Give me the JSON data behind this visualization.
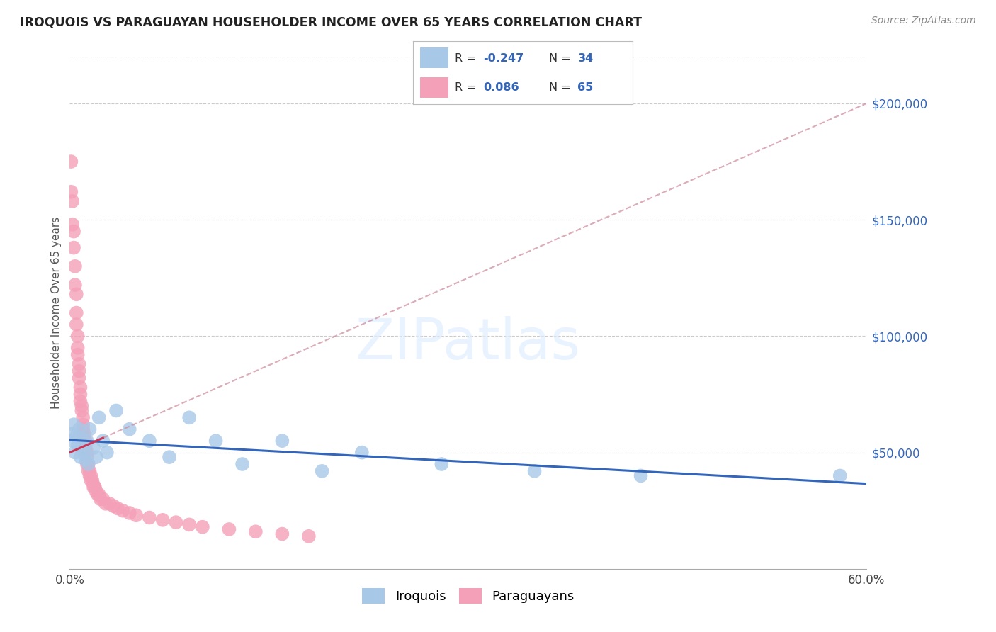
{
  "title": "IROQUOIS VS PARAGUAYAN HOUSEHOLDER INCOME OVER 65 YEARS CORRELATION CHART",
  "source": "Source: ZipAtlas.com",
  "ylabel": "Householder Income Over 65 years",
  "xlim": [
    0.0,
    0.6
  ],
  "ylim": [
    0,
    220000
  ],
  "yticks": [
    50000,
    100000,
    150000,
    200000
  ],
  "ytick_labels": [
    "$50,000",
    "$100,000",
    "$150,000",
    "$200,000"
  ],
  "iroquois_color": "#a8c8e8",
  "paraguayan_color": "#f4a0b8",
  "iroquois_line_color": "#3366bb",
  "paraguayan_line_color": "#cc3355",
  "paraguayan_dash_color": "#cc8899",
  "iroquois_r": -0.247,
  "iroquois_n": 34,
  "paraguayan_r": 0.086,
  "paraguayan_n": 65,
  "background_color": "#ffffff",
  "grid_color": "#cccccc",
  "iroquois_x": [
    0.001,
    0.002,
    0.003,
    0.004,
    0.005,
    0.006,
    0.007,
    0.008,
    0.009,
    0.01,
    0.011,
    0.012,
    0.013,
    0.014,
    0.015,
    0.018,
    0.02,
    0.022,
    0.025,
    0.028,
    0.035,
    0.045,
    0.06,
    0.075,
    0.09,
    0.11,
    0.13,
    0.16,
    0.19,
    0.22,
    0.28,
    0.35,
    0.43,
    0.58
  ],
  "iroquois_y": [
    58000,
    55000,
    62000,
    50000,
    57000,
    53000,
    60000,
    48000,
    56000,
    52000,
    50000,
    47000,
    55000,
    45000,
    60000,
    52000,
    48000,
    65000,
    55000,
    50000,
    68000,
    60000,
    55000,
    48000,
    65000,
    55000,
    45000,
    55000,
    42000,
    50000,
    45000,
    42000,
    40000,
    40000
  ],
  "paraguayan_x": [
    0.001,
    0.001,
    0.002,
    0.002,
    0.003,
    0.003,
    0.004,
    0.004,
    0.005,
    0.005,
    0.005,
    0.006,
    0.006,
    0.006,
    0.007,
    0.007,
    0.007,
    0.008,
    0.008,
    0.008,
    0.009,
    0.009,
    0.01,
    0.01,
    0.01,
    0.01,
    0.011,
    0.011,
    0.012,
    0.012,
    0.012,
    0.013,
    0.013,
    0.013,
    0.014,
    0.014,
    0.015,
    0.015,
    0.016,
    0.016,
    0.017,
    0.018,
    0.018,
    0.019,
    0.02,
    0.021,
    0.022,
    0.023,
    0.025,
    0.027,
    0.03,
    0.033,
    0.036,
    0.04,
    0.045,
    0.05,
    0.06,
    0.07,
    0.08,
    0.09,
    0.1,
    0.12,
    0.14,
    0.16,
    0.18
  ],
  "paraguayan_y": [
    175000,
    162000,
    158000,
    148000,
    145000,
    138000,
    130000,
    122000,
    118000,
    110000,
    105000,
    100000,
    95000,
    92000,
    88000,
    85000,
    82000,
    78000,
    75000,
    72000,
    70000,
    68000,
    65000,
    62000,
    60000,
    58000,
    58000,
    55000,
    55000,
    52000,
    50000,
    50000,
    48000,
    45000,
    45000,
    42000,
    42000,
    40000,
    40000,
    38000,
    38000,
    36000,
    35000,
    35000,
    33000,
    32000,
    32000,
    30000,
    30000,
    28000,
    28000,
    27000,
    26000,
    25000,
    24000,
    23000,
    22000,
    21000,
    20000,
    19000,
    18000,
    17000,
    16000,
    15000,
    14000
  ],
  "legend_iroquois_r": "R = -0.247",
  "legend_iroquois_n": "N = 34",
  "legend_paraguayan_r": "R =  0.086",
  "legend_paraguayan_n": "N = 65"
}
